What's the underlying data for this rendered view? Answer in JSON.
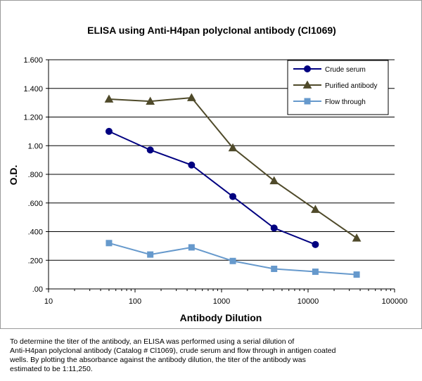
{
  "chart_data": {
    "type": "line",
    "title": "ELISA using Anti-H4pan polyclonal antibody (Cl1069)",
    "xlabel": "Antibody Dilution",
    "ylabel": "O.D.",
    "x_scale": "log",
    "xlim": [
      10,
      100000
    ],
    "ylim": [
      0,
      1.6
    ],
    "x_tick_values": [
      10,
      100,
      1000,
      10000,
      100000
    ],
    "x_tick_labels": [
      "10",
      "100",
      "1000",
      "10000",
      "100000"
    ],
    "y_tick_values": [
      0,
      0.2,
      0.4,
      0.6,
      0.8,
      1.0,
      1.2,
      1.4,
      1.6
    ],
    "y_tick_labels": [
      ".00",
      ".200",
      ".400",
      ".600",
      ".800",
      "1.00",
      "1.200",
      "1.400",
      "1.600"
    ],
    "grid": "horizontal",
    "legend_position": "top-right",
    "series": [
      {
        "name": "Crude serum",
        "color": "#000080",
        "marker": "circle",
        "points": [
          [
            50,
            1.1
          ],
          [
            150,
            0.97
          ],
          [
            450,
            0.865
          ],
          [
            1350,
            0.645
          ],
          [
            4050,
            0.425
          ],
          [
            12150,
            0.31
          ]
        ]
      },
      {
        "name": "Purified antibody",
        "color": "#4f4a2a",
        "marker": "triangle",
        "points": [
          [
            50,
            1.325
          ],
          [
            150,
            1.31
          ],
          [
            450,
            1.335
          ],
          [
            1350,
            0.985
          ],
          [
            4050,
            0.755
          ],
          [
            12150,
            0.555
          ],
          [
            36450,
            0.355
          ]
        ]
      },
      {
        "name": "Flow through",
        "color": "#6699cc",
        "marker": "square",
        "points": [
          [
            50,
            0.32
          ],
          [
            150,
            0.24
          ],
          [
            450,
            0.29
          ],
          [
            1350,
            0.195
          ],
          [
            4050,
            0.14
          ],
          [
            12150,
            0.12
          ],
          [
            36450,
            0.1
          ]
        ]
      }
    ]
  },
  "caption": "To determine the titer of the antibody, an ELISA was performed using a serial dilution of\nAnti-H4pan polyclonal antibody (Catalog # Cl1069), crude serum and flow through in antigen coated\nwells. By plotting the absorbance against the antibody dilution, the titer of the antibody was\nestimated to be 1:11,250."
}
